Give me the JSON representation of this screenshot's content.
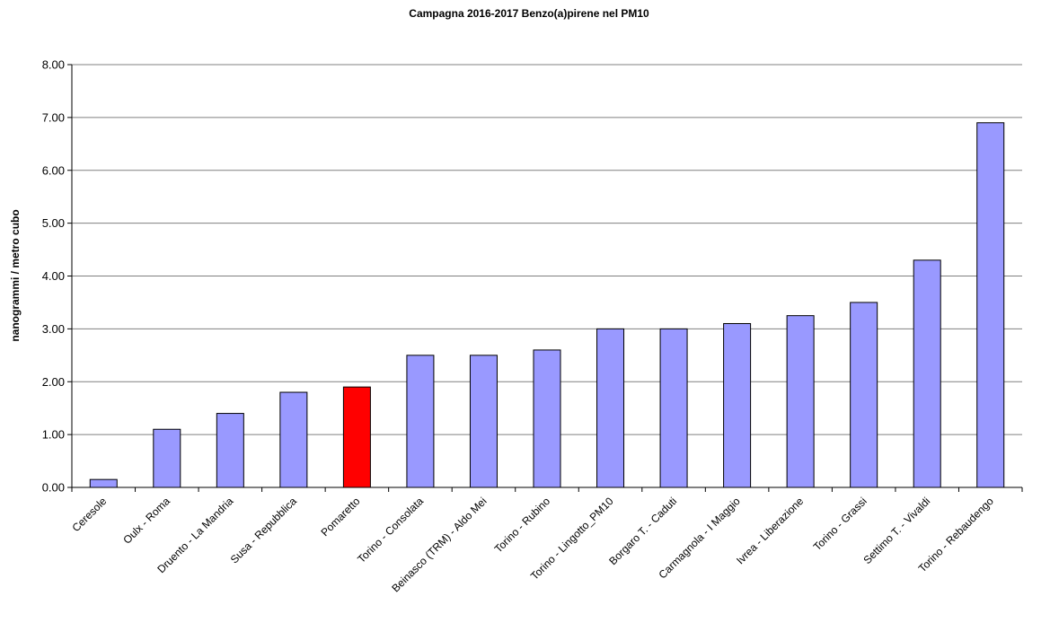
{
  "chart_data": {
    "type": "bar",
    "title": "Campagna 2016-2017 Benzo(a)pirene nel PM10",
    "xlabel": "",
    "ylabel": "nanogrammi / metro cubo",
    "ylim": [
      0,
      8
    ],
    "yticks": [
      "0.00",
      "1.00",
      "2.00",
      "3.00",
      "4.00",
      "5.00",
      "6.00",
      "7.00",
      "8.00"
    ],
    "grid": true,
    "legend": "none",
    "default_color": "#9999FF",
    "highlight_color": "#FF0000",
    "categories": [
      "Ceresole",
      "Oulx - Roma",
      "Druento - La Mandria",
      "Susa - Repubblica",
      "Pomaretto",
      "Torino - Consolata",
      "Beinasco (TRM) - Aldo Mei",
      "Torino - Rubino",
      "Torino - Lingotto_PM10",
      "Borgaro T. - Caduti",
      "Carmagnola - I Maggio",
      "Ivrea - Liberazione",
      "Torino - Grassi",
      "Settimo T. - Vivaldi",
      "Torino - Rebaudengo"
    ],
    "values": [
      0.15,
      1.1,
      1.4,
      1.8,
      1.9,
      2.5,
      2.5,
      2.6,
      3.0,
      3.0,
      3.1,
      3.25,
      3.5,
      4.3,
      6.9
    ],
    "highlighted": [
      "Pomaretto"
    ]
  }
}
